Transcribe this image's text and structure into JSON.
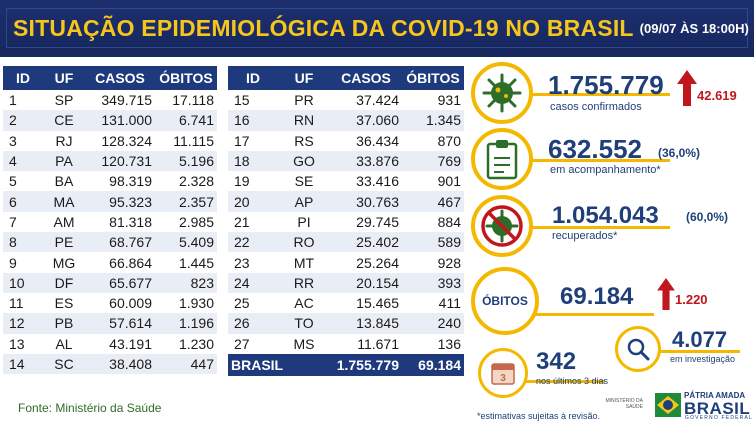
{
  "header": {
    "title": "SITUAÇÃO EPIDEMIOLÓGICA DA COVID-19 NO BRASIL",
    "date": "(09/07 ÀS 18:00H)"
  },
  "table_headers": {
    "id": "ID",
    "uf": "UF",
    "casos": "CASOS",
    "obitos": "ÓBITOS"
  },
  "table_left": [
    {
      "id": "1",
      "uf": "SP",
      "casos": "349.715",
      "obitos": "17.118"
    },
    {
      "id": "2",
      "uf": "CE",
      "casos": "131.000",
      "obitos": "6.741"
    },
    {
      "id": "3",
      "uf": "RJ",
      "casos": "128.324",
      "obitos": "11.115"
    },
    {
      "id": "4",
      "uf": "PA",
      "casos": "120.731",
      "obitos": "5.196"
    },
    {
      "id": "5",
      "uf": "BA",
      "casos": "98.319",
      "obitos": "2.328"
    },
    {
      "id": "6",
      "uf": "MA",
      "casos": "95.323",
      "obitos": "2.357"
    },
    {
      "id": "7",
      "uf": "AM",
      "casos": "81.318",
      "obitos": "2.985"
    },
    {
      "id": "8",
      "uf": "PE",
      "casos": "68.767",
      "obitos": "5.409"
    },
    {
      "id": "9",
      "uf": "MG",
      "casos": "66.864",
      "obitos": "1.445"
    },
    {
      "id": "10",
      "uf": "DF",
      "casos": "65.677",
      "obitos": "823"
    },
    {
      "id": "11",
      "uf": "ES",
      "casos": "60.009",
      "obitos": "1.930"
    },
    {
      "id": "12",
      "uf": "PB",
      "casos": "57.614",
      "obitos": "1.196"
    },
    {
      "id": "13",
      "uf": "AL",
      "casos": "43.191",
      "obitos": "1.230"
    },
    {
      "id": "14",
      "uf": "SC",
      "casos": "38.408",
      "obitos": "447"
    }
  ],
  "table_right": [
    {
      "id": "15",
      "uf": "PR",
      "casos": "37.424",
      "obitos": "931"
    },
    {
      "id": "16",
      "uf": "RN",
      "casos": "37.060",
      "obitos": "1.345"
    },
    {
      "id": "17",
      "uf": "RS",
      "casos": "36.434",
      "obitos": "870"
    },
    {
      "id": "18",
      "uf": "GO",
      "casos": "33.876",
      "obitos": "769"
    },
    {
      "id": "19",
      "uf": "SE",
      "casos": "33.416",
      "obitos": "901"
    },
    {
      "id": "20",
      "uf": "AP",
      "casos": "30.763",
      "obitos": "467"
    },
    {
      "id": "21",
      "uf": "PI",
      "casos": "29.745",
      "obitos": "884"
    },
    {
      "id": "22",
      "uf": "RO",
      "casos": "25.402",
      "obitos": "589"
    },
    {
      "id": "23",
      "uf": "MT",
      "casos": "25.264",
      "obitos": "928"
    },
    {
      "id": "24",
      "uf": "RR",
      "casos": "20.154",
      "obitos": "393"
    },
    {
      "id": "25",
      "uf": "AC",
      "casos": "15.465",
      "obitos": "411"
    },
    {
      "id": "26",
      "uf": "TO",
      "casos": "13.845",
      "obitos": "240"
    },
    {
      "id": "27",
      "uf": "MS",
      "casos": "11.671",
      "obitos": "136"
    }
  ],
  "table_total": {
    "label": "BRASIL",
    "casos": "1.755.779",
    "obitos": "69.184"
  },
  "stats": {
    "confirmados": {
      "value": "1.755.779",
      "label": "casos confirmados",
      "increase": "42.619"
    },
    "acompanhamento": {
      "value": "632.552",
      "pct": "(36,0%)",
      "label": "em acompanhamento*"
    },
    "recuperados": {
      "value": "1.054.043",
      "pct": "(60,0%)",
      "label": "recuperados*"
    },
    "obitos": {
      "label": "ÓBITOS",
      "value": "69.184",
      "increase": "1.220"
    },
    "ultimos": {
      "value": "342",
      "label": "nos últimos 3 dias",
      "icon_number": "3"
    },
    "investigacao": {
      "value": "4.077",
      "label": "em investigação"
    }
  },
  "footer": {
    "fonte": "Fonte: Ministério da Saúde",
    "footnote": "*estimativas sujeitas à revisão.",
    "ministerio": "MINISTÉRIO DA SAÚDE",
    "patria": "PÁTRIA AMADA",
    "brasil": "BRASIL",
    "governo": "GOVERNO FEDERAL"
  },
  "colors": {
    "navy": "#1e3a7d",
    "yellow": "#f7c61b",
    "red": "#c0161c",
    "ring": "#f5b800",
    "green": "#2d6d2a"
  }
}
